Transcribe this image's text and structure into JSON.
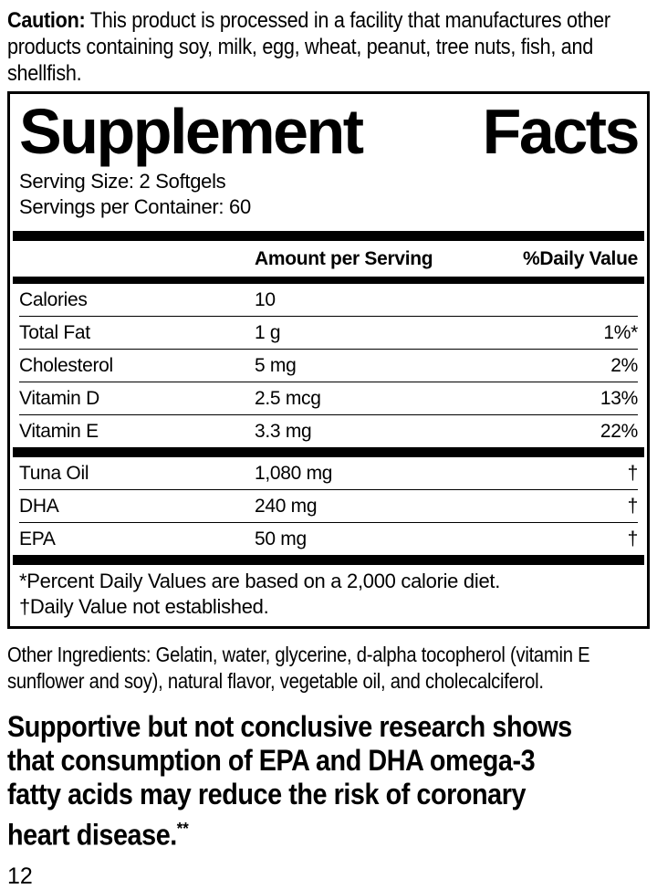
{
  "caution": {
    "label": "Caution:",
    "lines": [
      " This product is processed in a facility that manufactures other",
      "products containing soy, milk, egg, wheat, peanut, tree nuts, fish, and",
      "shellfish."
    ]
  },
  "panel": {
    "title_word1": "Supplement",
    "title_word2": "Facts",
    "serving_size": "Serving Size: 2 Softgels",
    "servings_per_container": "Servings per Container: 60",
    "columns": {
      "amount": "Amount per Serving",
      "daily_value": "%Daily Value"
    },
    "rows": [
      {
        "name": "Calories",
        "amount": "10",
        "dv": ""
      },
      {
        "name": "Total Fat",
        "amount": "1 g",
        "dv": "1%*"
      },
      {
        "name": "Cholesterol",
        "amount": "5 mg",
        "dv": "2%"
      },
      {
        "name": "Vitamin D",
        "amount": "2.5 mcg",
        "dv": "13%"
      },
      {
        "name": "Vitamin E",
        "amount": "3.3 mg",
        "dv": "22%"
      }
    ],
    "rows2": [
      {
        "name": "Tuna Oil",
        "amount": "1,080 mg",
        "dv": "†"
      },
      {
        "name": "DHA",
        "amount": "240 mg",
        "dv": "†"
      },
      {
        "name": "EPA",
        "amount": "50 mg",
        "dv": "†"
      }
    ],
    "footnotes": [
      "*Percent Daily Values are based on a 2,000 calorie diet.",
      "†Daily Value not established."
    ]
  },
  "other_ingredients": {
    "lines": [
      "Other Ingredients: Gelatin, water, glycerine, d-alpha tocopherol (vitamin E",
      "sunflower and soy), natural flavor, vegetable oil, and cholecalciferol."
    ]
  },
  "claim": {
    "lines": [
      "Supportive but not conclusive research shows",
      "that consumption of EPA and DHA omega-3",
      "fatty acids may reduce the risk of coronary",
      "heart disease."
    ],
    "marker": "**"
  },
  "page_number": "12",
  "colors": {
    "ink": "#000000",
    "background": "#ffffff"
  }
}
